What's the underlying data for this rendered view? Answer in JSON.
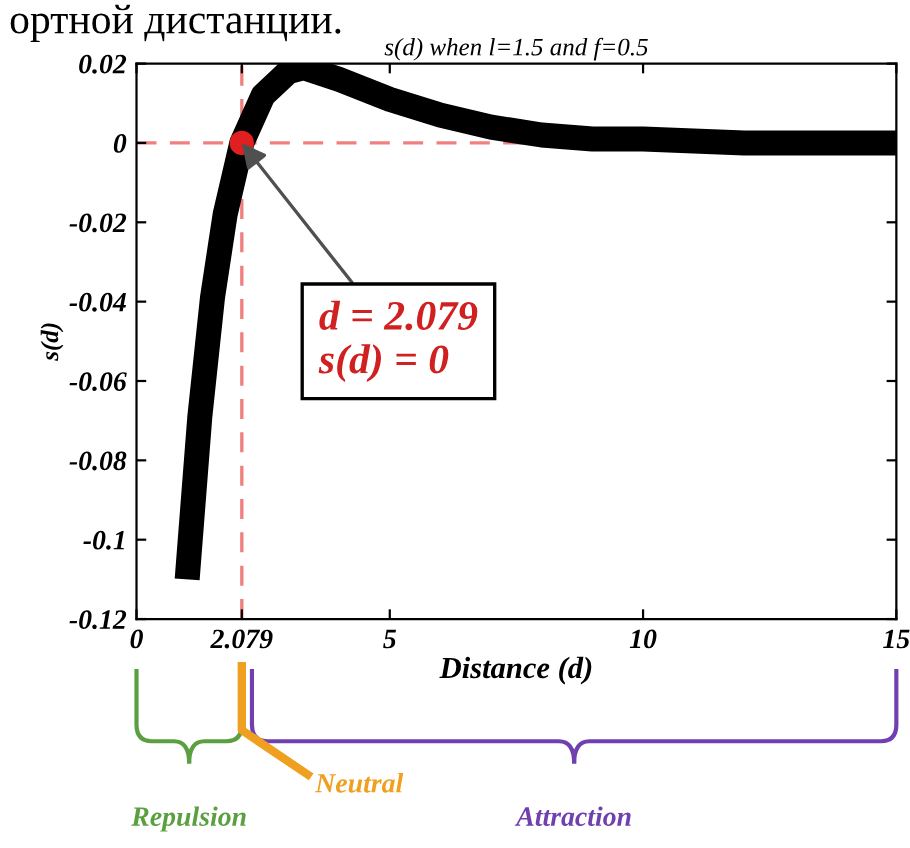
{
  "chart_data": {
    "type": "line",
    "title": "s(d) when l=1.5 and f=0.5",
    "xlabel": "Distance (d)",
    "ylabel": "s(d)",
    "series": [
      {
        "color": "#000000",
        "x": [
          1,
          1.25,
          1.5,
          1.75,
          2.079,
          2.5,
          3,
          3.3,
          4,
          5,
          6,
          7,
          8,
          9,
          10,
          12,
          15
        ],
        "values": [
          -0.11,
          -0.069,
          -0.039,
          -0.018,
          0,
          0.012,
          0.018,
          0.019,
          0.016,
          0.011,
          0.007,
          0.004,
          0.002,
          0.001,
          0.001,
          0,
          0
        ]
      },
      {
        "type": "scatter",
        "color": "#e02020",
        "marker": "circle",
        "x": [
          2.079
        ],
        "values": [
          0
        ]
      }
    ],
    "xlim": [
      0,
      15
    ],
    "ylim": [
      -0.12,
      0.02
    ],
    "xticks": [
      0,
      2.079,
      5,
      10,
      15
    ],
    "yticks": [
      0.02,
      0,
      -0.02,
      -0.04,
      -0.06,
      -0.08,
      -0.1,
      -0.12
    ],
    "ref_lines": [
      {
        "axis": "y",
        "value": 0,
        "color": "#f08080",
        "line_style": "dashed"
      },
      {
        "axis": "x",
        "value": 2.079,
        "color": "#f08080",
        "line_style": "dashed"
      }
    ],
    "annotations": [
      "ортной дистанции.",
      {
        "text": "d = 2.079\ns(d) = 0",
        "x": 2.079,
        "y": 0
      },
      "Repulsion",
      "Neutral",
      "Attraction"
    ],
    "grid": false
  }
}
